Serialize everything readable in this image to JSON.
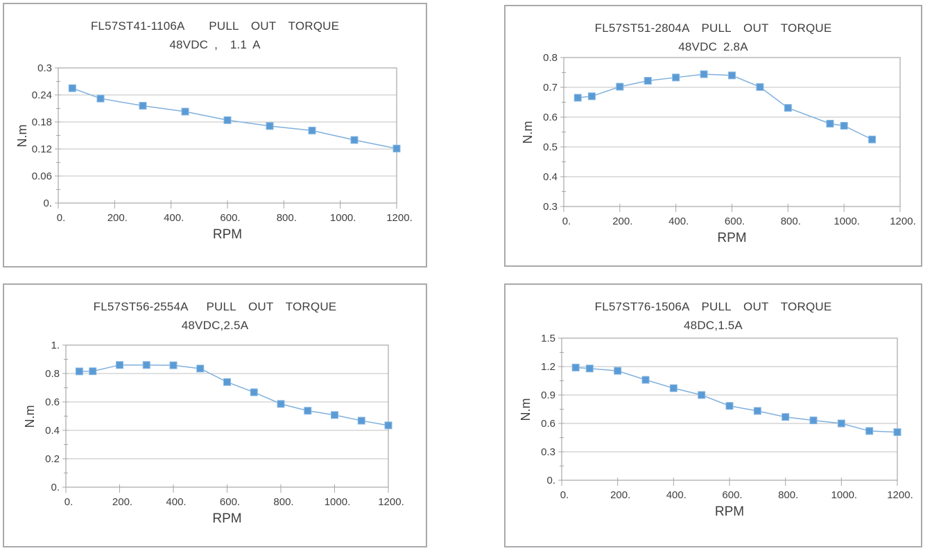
{
  "colors": {
    "marker": "#5b9bd5",
    "marker_edge": "#8ab9e2",
    "line": "#7fb0dd",
    "axis": "#a6a6a6",
    "grid": "#c2c2c2",
    "text": "#3f3f3f",
    "panel_border": "#a9a9ad"
  },
  "chart_data": [
    {
      "type": "line",
      "title": "FL57ST41-1106A    PULL  OUT  TORQUE",
      "subtitle": "48VDC ,  1.1 A",
      "xlabel": "RPM",
      "ylabel": "N.m",
      "xlim": [
        0,
        1200
      ],
      "ylim": [
        0,
        0.3
      ],
      "x_ticks": [
        0,
        200,
        400,
        600,
        800,
        1000,
        1200
      ],
      "x_tick_labels": [
        "0.",
        "200.",
        "400.",
        "600.",
        "800.",
        "1000.",
        "1200."
      ],
      "y_ticks": [
        0,
        0.06,
        0.12,
        0.18,
        0.24,
        0.3
      ],
      "y_tick_labels": [
        "0.",
        "0.06",
        "0.12",
        "0.18",
        "0.24",
        "0.3"
      ],
      "grid": "horizontal",
      "legend": "none",
      "marker": "square",
      "series": [
        {
          "name": "pull-out torque",
          "x": [
            50,
            150,
            300,
            450,
            600,
            750,
            900,
            1050,
            1200
          ],
          "y": [
            0.255,
            0.232,
            0.216,
            0.203,
            0.184,
            0.171,
            0.161,
            0.14,
            0.121
          ]
        }
      ]
    },
    {
      "type": "line",
      "title": "FL57ST51-2804A  PULL  OUT  TORQUE",
      "subtitle": "48VDC 2.8A",
      "xlabel": "RPM",
      "ylabel": "N.m",
      "xlim": [
        0,
        1200
      ],
      "ylim": [
        0.3,
        0.8
      ],
      "x_ticks": [
        0,
        200,
        400,
        600,
        800,
        1000,
        1200
      ],
      "x_tick_labels": [
        "0.",
        "200.",
        "400.",
        "600.",
        "800.",
        "1000.",
        "1200."
      ],
      "y_ticks": [
        0.3,
        0.4,
        0.5,
        0.6,
        0.7,
        0.8
      ],
      "y_tick_labels": [
        "0.3",
        "0.4",
        "0.5",
        "0.6",
        "0.7",
        "0.8"
      ],
      "grid": "horizontal",
      "legend": "none",
      "marker": "square",
      "series": [
        {
          "name": "pull-out torque",
          "x": [
            50,
            100,
            200,
            300,
            400,
            500,
            600,
            700,
            800,
            950,
            1000,
            1100
          ],
          "y": [
            0.665,
            0.67,
            0.702,
            0.722,
            0.733,
            0.744,
            0.74,
            0.701,
            0.631,
            0.578,
            0.571,
            0.525
          ]
        }
      ]
    },
    {
      "type": "line",
      "title": "FL57ST56-2554A   PULL  OUT  TORQUE",
      "subtitle": "48VDC,2.5A",
      "xlabel": "RPM",
      "ylabel": "N.m",
      "xlim": [
        0,
        1200
      ],
      "ylim": [
        0,
        1.0
      ],
      "x_ticks": [
        0,
        200,
        400,
        600,
        800,
        1000,
        1200
      ],
      "x_tick_labels": [
        "0.",
        "200.",
        "400.",
        "600.",
        "800.",
        "1000.",
        "1200."
      ],
      "y_ticks": [
        0,
        0.2,
        0.4,
        0.6,
        0.8,
        1.0
      ],
      "y_tick_labels": [
        "0.",
        "0.2",
        "0.4",
        "0.6",
        "0.8",
        "1."
      ],
      "grid": "horizontal",
      "legend": "none",
      "marker": "square",
      "series": [
        {
          "name": "pull-out torque",
          "x": [
            50,
            100,
            200,
            300,
            400,
            500,
            600,
            700,
            800,
            900,
            1000,
            1100,
            1200
          ],
          "y": [
            0.815,
            0.816,
            0.86,
            0.86,
            0.858,
            0.835,
            0.74,
            0.668,
            0.586,
            0.538,
            0.508,
            0.468,
            0.435
          ]
        }
      ]
    },
    {
      "type": "line",
      "title": "FL57ST76-1506A  PULL  OUT  TORQUE",
      "subtitle": "48DC,1.5A",
      "xlabel": "RPM",
      "ylabel": "N.m",
      "xlim": [
        0,
        1200
      ],
      "ylim": [
        0,
        1.5
      ],
      "x_ticks": [
        0,
        200,
        400,
        600,
        800,
        1000,
        1200
      ],
      "x_tick_labels": [
        "0.",
        "200.",
        "400.",
        "600.",
        "800.",
        "1000.",
        "1200."
      ],
      "y_ticks": [
        0,
        0.3,
        0.6,
        0.9,
        1.2,
        1.5
      ],
      "y_tick_labels": [
        "0.",
        "0.3",
        "0.6",
        "0.9",
        "1.2",
        "1.5"
      ],
      "grid": "horizontal",
      "legend": "none",
      "marker": "square",
      "series": [
        {
          "name": "pull-out torque",
          "x": [
            50,
            100,
            200,
            300,
            400,
            500,
            600,
            700,
            800,
            900,
            1000,
            1100,
            1200
          ],
          "y": [
            1.19,
            1.18,
            1.155,
            1.06,
            0.972,
            0.9,
            0.785,
            0.732,
            0.668,
            0.632,
            0.6,
            0.52,
            0.508
          ]
        }
      ]
    }
  ]
}
